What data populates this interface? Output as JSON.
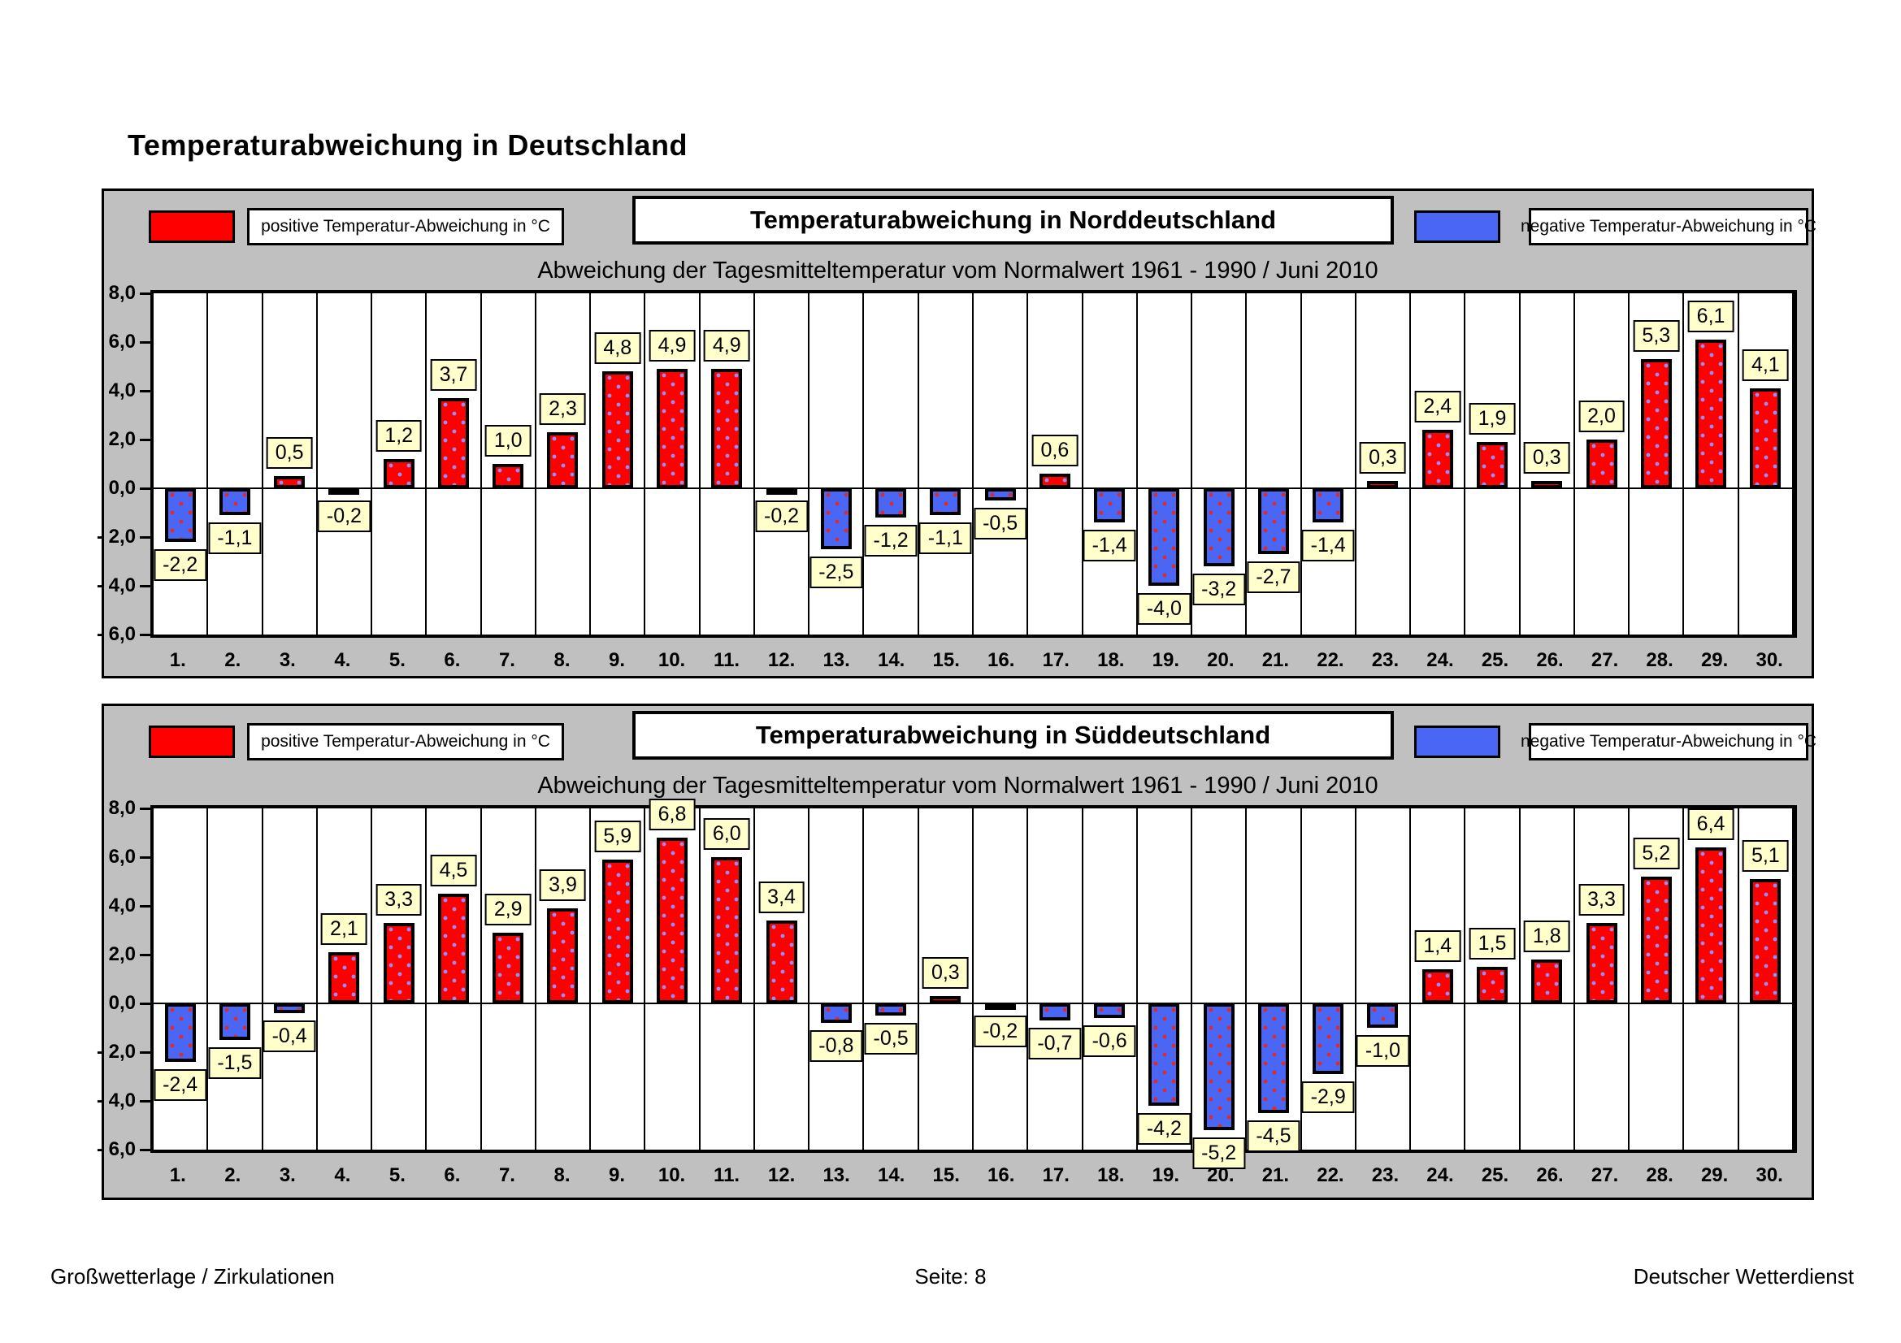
{
  "page_title": "Temperaturabweichung in Deutschland",
  "colors": {
    "positive": "#FF0000",
    "negative": "#4A66F5",
    "panel_bg": "#C0C0C0",
    "value_label_bg": "#FFFFCC"
  },
  "footer": {
    "left": "Großwetterlage / Zirkulationen",
    "center": "Seite: 8",
    "right": "Deutscher Wetterdienst"
  },
  "chart_data": [
    {
      "type": "bar",
      "title": "Temperaturabweichung in Norddeutschland",
      "subtitle": "Abweichung der Tagesmitteltemperatur vom Normalwert 1961 - 1990  /  Juni 2010",
      "legend_positive": "positive Temperatur-Abweichung in °C",
      "legend_negative": "negative Temperatur-Abweichung in °C",
      "ylim": [
        -6,
        8
      ],
      "y_ticks": [
        "8,0",
        "6,0",
        "4,0",
        "2,0",
        "0,0",
        "- 2,0",
        "- 4,0",
        "- 6,0"
      ],
      "categories": [
        "1.",
        "2.",
        "3.",
        "4.",
        "5.",
        "6.",
        "7.",
        "8.",
        "9.",
        "10.",
        "11.",
        "12.",
        "13.",
        "14.",
        "15.",
        "16.",
        "17.",
        "18.",
        "19.",
        "20.",
        "21.",
        "22.",
        "23.",
        "24.",
        "25.",
        "26.",
        "27.",
        "28.",
        "29.",
        "30."
      ],
      "values": [
        -2.2,
        -1.1,
        0.5,
        -0.2,
        1.2,
        3.7,
        1.0,
        2.3,
        4.8,
        4.9,
        4.9,
        -0.2,
        -2.5,
        -1.2,
        -1.1,
        -0.5,
        0.6,
        -1.4,
        -4.0,
        -3.2,
        -2.7,
        -1.4,
        0.3,
        2.4,
        1.9,
        0.3,
        2.0,
        5.3,
        6.1,
        4.1
      ],
      "labels": [
        "-2,2",
        "-1,1",
        "0,5",
        "-0,2",
        "1,2",
        "3,7",
        "1,0",
        "2,3",
        "4,8",
        "4,9",
        "4,9",
        "-0,2",
        "-2,5",
        "-1,2",
        "-1,1",
        "-0,5",
        "0,6",
        "-1,4",
        "-4,0",
        "-3,2",
        "-2,7",
        "-1,4",
        "0,3",
        "2,4",
        "1,9",
        "0,3",
        "2,0",
        "5,3",
        "6,1",
        "4,1"
      ]
    },
    {
      "type": "bar",
      "title": "Temperaturabweichung in Süddeutschland",
      "subtitle": "Abweichung der Tagesmitteltemperatur vom Normalwert 1961 - 1990  /  Juni 2010",
      "legend_positive": "positive Temperatur-Abweichung in °C",
      "legend_negative": "negative Temperatur-Abweichung in °C",
      "ylim": [
        -6,
        8
      ],
      "y_ticks": [
        "8,0",
        "6,0",
        "4,0",
        "2,0",
        "0,0",
        "- 2,0",
        "- 4,0",
        "- 6,0"
      ],
      "categories": [
        "1.",
        "2.",
        "3.",
        "4.",
        "5.",
        "6.",
        "7.",
        "8.",
        "9.",
        "10.",
        "11.",
        "12.",
        "13.",
        "14.",
        "15.",
        "16.",
        "17.",
        "18.",
        "19.",
        "20.",
        "21.",
        "22.",
        "23.",
        "24.",
        "25.",
        "26.",
        "27.",
        "28.",
        "29.",
        "30."
      ],
      "values": [
        -2.4,
        -1.5,
        -0.4,
        2.1,
        3.3,
        4.5,
        2.9,
        3.9,
        5.9,
        6.8,
        6.0,
        3.4,
        -0.8,
        -0.5,
        0.3,
        -0.2,
        -0.7,
        -0.6,
        -4.2,
        -5.2,
        -4.5,
        -2.9,
        -1.0,
        1.4,
        1.5,
        1.8,
        3.3,
        5.2,
        6.4,
        5.1
      ],
      "labels": [
        "-2,4",
        "-1,5",
        "-0,4",
        "2,1",
        "3,3",
        "4,5",
        "2,9",
        "3,9",
        "5,9",
        "6,8",
        "6,0",
        "3,4",
        "-0,8",
        "-0,5",
        "0,3",
        "-0,2",
        "-0,7",
        "-0,6",
        "-4,2",
        "-5,2",
        "-4,5",
        "-2,9",
        "-1,0",
        "1,4",
        "1,5",
        "1,8",
        "3,3",
        "5,2",
        "6,4",
        "5,1"
      ]
    }
  ]
}
